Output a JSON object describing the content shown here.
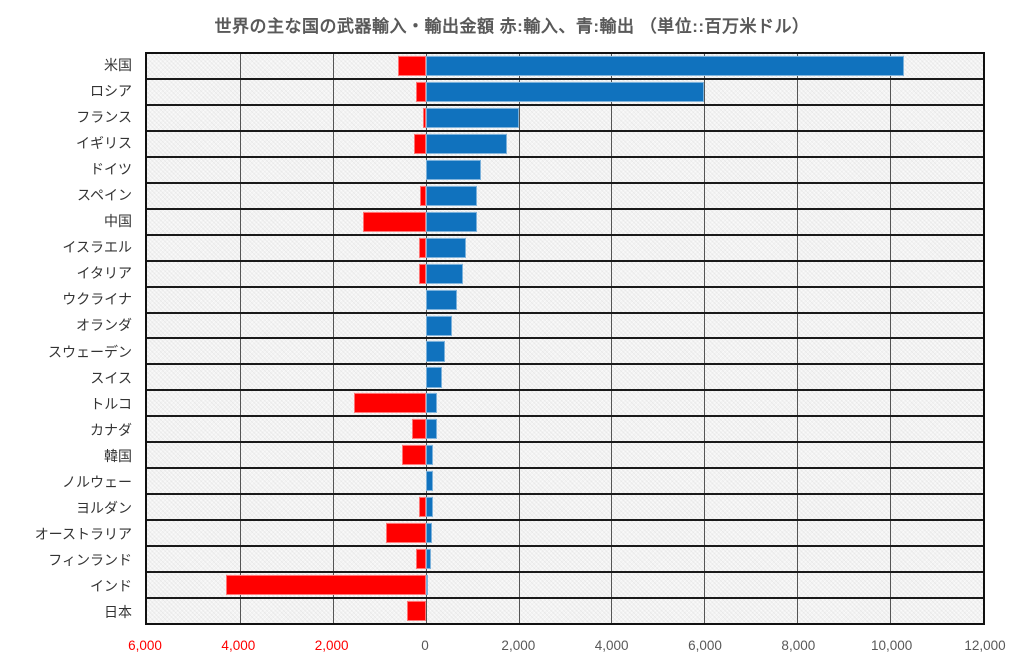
{
  "chart_data": {
    "type": "bar",
    "orientation": "horizontal",
    "title": "世界の主な国の武器輸入・輸出金額  赤:輸入、青:輸出 （単位::百万米ドル）",
    "unit": "百万米ドル",
    "xlim": [
      -6000,
      12000
    ],
    "grid": true,
    "gridline_step": 2000,
    "categories": [
      "米国",
      "ロシア",
      "フランス",
      "イギリス",
      "ドイツ",
      "スペイン",
      "中国",
      "イスラエル",
      "イタリア",
      "ウクライナ",
      "オランダ",
      "スウェーデン",
      "スイス",
      "トルコ",
      "カナダ",
      "韓国",
      "ノルウェー",
      "ヨルダン",
      "オーストラリア",
      "フィンランド",
      "インド",
      "日本"
    ],
    "series": [
      {
        "name": "輸入",
        "color": "#FF0000",
        "values": [
          -600,
          -200,
          -60,
          -250,
          0,
          -130,
          -1350,
          -150,
          -150,
          0,
          0,
          0,
          0,
          -1550,
          -300,
          -520,
          0,
          -150,
          -850,
          -200,
          -4300,
          -400
        ]
      },
      {
        "name": "輸出",
        "color": "#1072BE",
        "values": [
          10300,
          6000,
          2000,
          1750,
          1200,
          1100,
          1100,
          870,
          800,
          670,
          560,
          410,
          360,
          250,
          250,
          160,
          150,
          150,
          130,
          110,
          60,
          0
        ]
      }
    ],
    "x_ticks": [
      {
        "value": -6000,
        "label": "6,000",
        "negative": true
      },
      {
        "value": -4000,
        "label": "4,000",
        "negative": true
      },
      {
        "value": -2000,
        "label": "2,000",
        "negative": true
      },
      {
        "value": 0,
        "label": "0",
        "negative": false
      },
      {
        "value": 2000,
        "label": "2,000",
        "negative": false
      },
      {
        "value": 4000,
        "label": "4,000",
        "negative": false
      },
      {
        "value": 6000,
        "label": "6,000",
        "negative": false
      },
      {
        "value": 8000,
        "label": "8,000",
        "negative": false
      },
      {
        "value": 10000,
        "label": "10,000",
        "negative": false
      },
      {
        "value": 12000,
        "label": "12,000",
        "negative": false
      }
    ],
    "colors": {
      "import_bar": "#FF0000",
      "export_bar": "#1072BE",
      "tick_negative": "#FF0000",
      "tick_positive": "#595959",
      "gridline": "#555555",
      "row_border": "#1a1a1a"
    }
  }
}
